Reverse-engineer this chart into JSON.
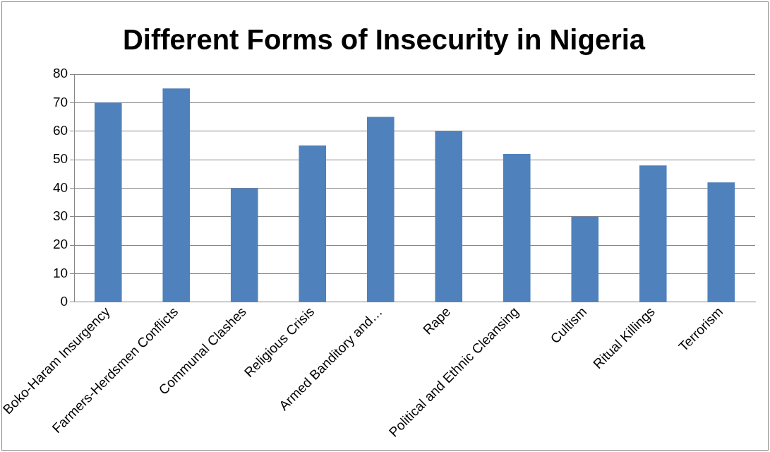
{
  "chart_data": {
    "type": "bar",
    "title": "Different Forms of Insecurity in Nigeria",
    "categories": [
      "Boko-Haram Insurgency",
      "Farmers-Herdsmen Conflicts",
      "Communal Clashes",
      "Religious Crisis",
      "Armed Banditory and…",
      "Rape",
      "Political and Ethnic Cleansing",
      "Cultism",
      "Ritual Killings",
      "Terrorism"
    ],
    "values": [
      70,
      75,
      40,
      55,
      65,
      60,
      52,
      30,
      48,
      42
    ],
    "color": "#4f81bd",
    "ylim": [
      0,
      80
    ],
    "yticks": [
      0,
      10,
      20,
      30,
      40,
      50,
      60,
      70,
      80
    ],
    "grid": "y",
    "legend": false
  }
}
